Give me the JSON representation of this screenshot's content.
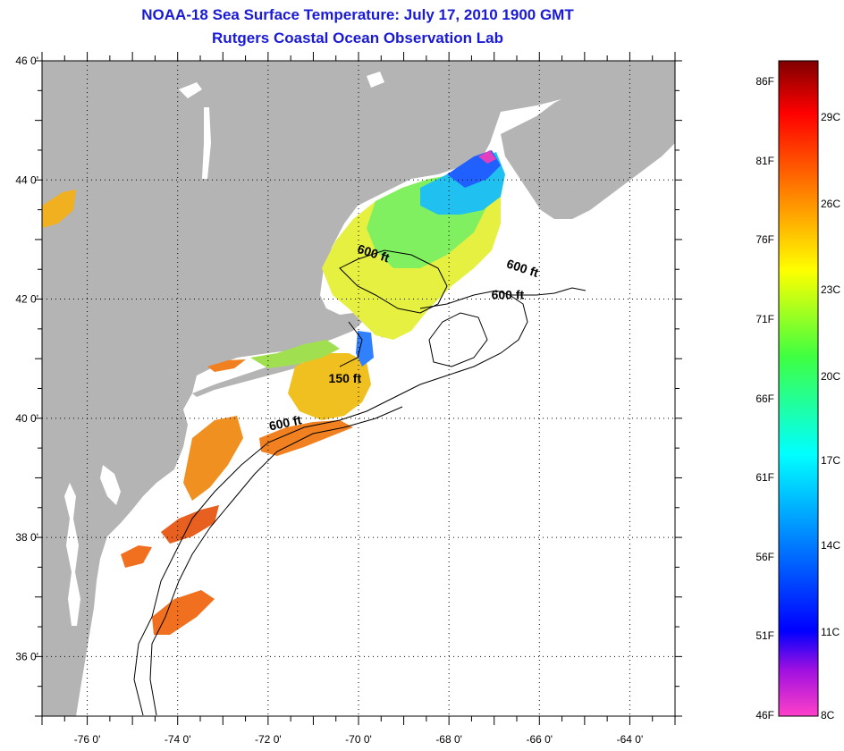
{
  "header": {
    "title": "NOAA-18 Sea Surface Temperature:  July 17, 2010 1900 GMT",
    "subtitle": "Rutgers Coastal Ocean Observation Lab"
  },
  "map": {
    "lon_range": [
      -77,
      -63
    ],
    "lat_range": [
      35,
      46
    ],
    "lon_ticks": [
      {
        "value": -76,
        "label": "-76 0'"
      },
      {
        "value": -74,
        "label": "-74 0'"
      },
      {
        "value": -72,
        "label": "-72 0'"
      },
      {
        "value": -70,
        "label": "-70 0'"
      },
      {
        "value": -68,
        "label": "-68 0'"
      },
      {
        "value": -66,
        "label": "-66 0'"
      },
      {
        "value": -64,
        "label": "-64 0'"
      }
    ],
    "lat_ticks": [
      {
        "value": 46,
        "label": "46 0'"
      },
      {
        "value": 44,
        "label": "44 0'"
      },
      {
        "value": 42,
        "label": "42 0'"
      },
      {
        "value": 40,
        "label": "40 0'"
      },
      {
        "value": 38,
        "label": "38 0'"
      },
      {
        "value": 36,
        "label": "36 0'"
      }
    ],
    "grid": true,
    "land_color": "#b4b4b4",
    "ocean_color": "#ffffff",
    "contour_labels": [
      {
        "text": "600 ft",
        "lon": -69.7,
        "lat": 42.7
      },
      {
        "text": "600 ft",
        "lon": -66.4,
        "lat": 42.45
      },
      {
        "text": "600 ft",
        "lon": -66.7,
        "lat": 42.0
      },
      {
        "text": "150 ft",
        "lon": -70.3,
        "lat": 40.6
      },
      {
        "text": "600 ft",
        "lon": -71.6,
        "lat": 39.85
      }
    ]
  },
  "colorbar": {
    "fahrenheit_labels": [
      "86F",
      "81F",
      "76F",
      "71F",
      "66F",
      "61F",
      "56F",
      "51F",
      "46F"
    ],
    "celsius_labels": [
      "29C",
      "26C",
      "23C",
      "20C",
      "17C",
      "14C",
      "11C",
      "8C"
    ],
    "colors": [
      "#ff40c8",
      "#a010e0",
      "#0000ff",
      "#00a0ff",
      "#00ffff",
      "#00ff80",
      "#ffff00",
      "#ff8000",
      "#ff0000",
      "#800000"
    ]
  }
}
